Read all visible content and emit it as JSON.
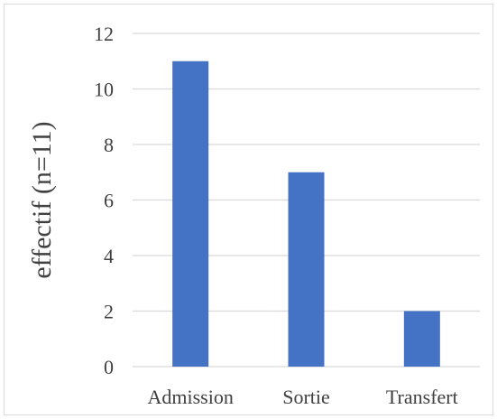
{
  "chart_data": {
    "type": "bar",
    "categories": [
      "Admission",
      "Sortie",
      "Transfert"
    ],
    "values": [
      11,
      7,
      2
    ],
    "title": "",
    "xlabel": "",
    "ylabel": "effectif (n=11)",
    "ylim": [
      0,
      12
    ],
    "yticks": [
      0,
      2,
      4,
      6,
      8,
      10,
      12
    ],
    "grid": true,
    "bar_color": "#4472c4",
    "grid_color": "#d9d9d9"
  }
}
